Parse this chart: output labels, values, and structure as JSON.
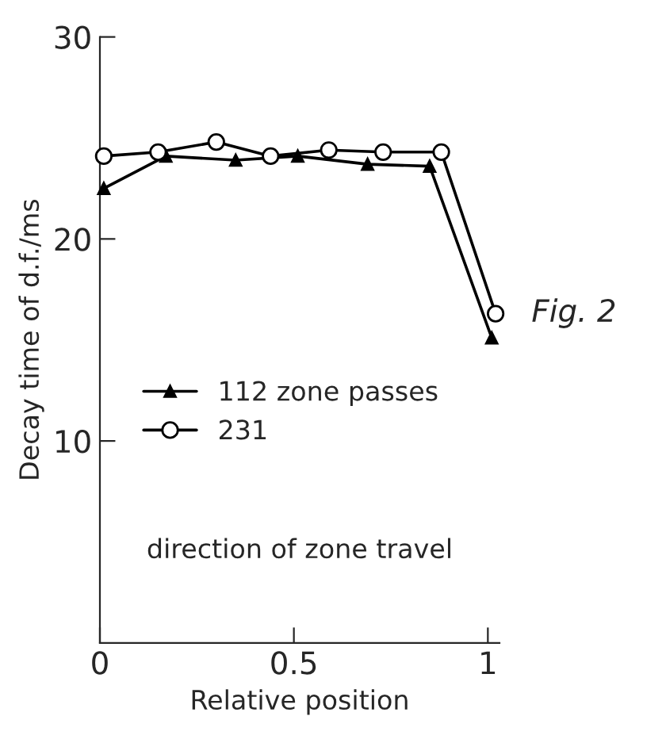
{
  "chart_data": {
    "type": "line",
    "xlabel": "Relative position",
    "ylabel": "Decay time of d.f./ms",
    "xlim": [
      0,
      1.03
    ],
    "ylim": [
      0,
      30
    ],
    "xticks": [
      0,
      0.5,
      1
    ],
    "yticks": [
      10,
      20,
      30
    ],
    "grid": false,
    "legend": "left",
    "series": [
      {
        "name": "112 zone passes",
        "color": "#000000",
        "marker": "triangle",
        "x": [
          0.01,
          0.17,
          0.35,
          0.51,
          0.69,
          0.85,
          1.01
        ],
        "values": [
          22.5,
          24.1,
          23.9,
          24.1,
          23.7,
          23.6,
          15.1
        ]
      },
      {
        "name": "231",
        "color": "#000000",
        "marker": "circle",
        "x": [
          0.01,
          0.15,
          0.3,
          0.44,
          0.59,
          0.73,
          0.88,
          1.02
        ],
        "values": [
          24.1,
          24.3,
          24.8,
          24.1,
          24.4,
          24.3,
          24.3,
          16.3
        ]
      }
    ],
    "annotations": [
      "direction of zone travel",
      "Fig. 2"
    ]
  }
}
